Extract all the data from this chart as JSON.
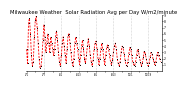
{
  "title": "Milwaukee Weather  Solar Radiation Avg per Day W/m2/minute",
  "title_fontsize": 3.8,
  "line_color": "red",
  "marker_color": "black",
  "background_color": "#ffffff",
  "grid_color": "#aaaaaa",
  "ylim": [
    0,
    9
  ],
  "yticks": [
    1,
    2,
    3,
    4,
    5,
    6,
    7,
    8,
    9
  ],
  "values": [
    3.5,
    1.2,
    7.8,
    8.5,
    6.0,
    2.5,
    0.8,
    1.5,
    5.5,
    8.2,
    8.8,
    7.0,
    4.5,
    2.0,
    0.5,
    0.8,
    2.5,
    5.0,
    7.5,
    5.5,
    3.0,
    4.5,
    6.0,
    4.5,
    3.0,
    5.5,
    4.5,
    3.5,
    2.5,
    3.5,
    5.5,
    6.5,
    5.0,
    3.0,
    1.5,
    0.8,
    2.5,
    4.5,
    5.5,
    4.0,
    2.5,
    1.2,
    3.5,
    5.8,
    6.0,
    4.5,
    3.0,
    1.5,
    0.8,
    2.0,
    4.5,
    5.5,
    4.5,
    3.5,
    2.0,
    1.0,
    2.5,
    4.0,
    5.0,
    3.5,
    2.0,
    1.2,
    2.5,
    4.0,
    5.2,
    4.0,
    2.5,
    1.5,
    0.8,
    1.8,
    3.5,
    4.5,
    4.8,
    3.5,
    2.0,
    1.0,
    2.0,
    3.5,
    4.5,
    3.5,
    2.0,
    1.0,
    2.5,
    3.8,
    4.2,
    3.5,
    2.5,
    1.5,
    1.0,
    1.8,
    3.0,
    4.0,
    4.5,
    3.5,
    2.0,
    1.2,
    0.8,
    1.5,
    3.0,
    4.0,
    3.8,
    2.8,
    1.8,
    1.0,
    0.8,
    1.5,
    2.8,
    3.8,
    3.5,
    2.5,
    1.5,
    1.0,
    0.8,
    1.5,
    2.5,
    3.5,
    3.2,
    2.2,
    1.5,
    0.8,
    1.2,
    2.2,
    3.2,
    2.8,
    2.0,
    1.2,
    0.8,
    1.2,
    2.2,
    3.0,
    2.8,
    2.0,
    1.5,
    1.0,
    1.5,
    2.5,
    3.0,
    2.5,
    2.0,
    1.5
  ],
  "vline_positions": [
    18,
    36,
    54,
    72,
    90,
    108,
    126
  ],
  "x_tick_positions": [
    0,
    9,
    18,
    27,
    36,
    45,
    54,
    63,
    72,
    81,
    90,
    99,
    108,
    117,
    126,
    135
  ],
  "x_tick_labels": [
    "7/1",
    "",
    "7/7",
    "",
    "8/1",
    "",
    "8/13",
    "",
    "9/1",
    "",
    "9/13",
    "",
    "10/1",
    "",
    "10/19",
    ""
  ]
}
